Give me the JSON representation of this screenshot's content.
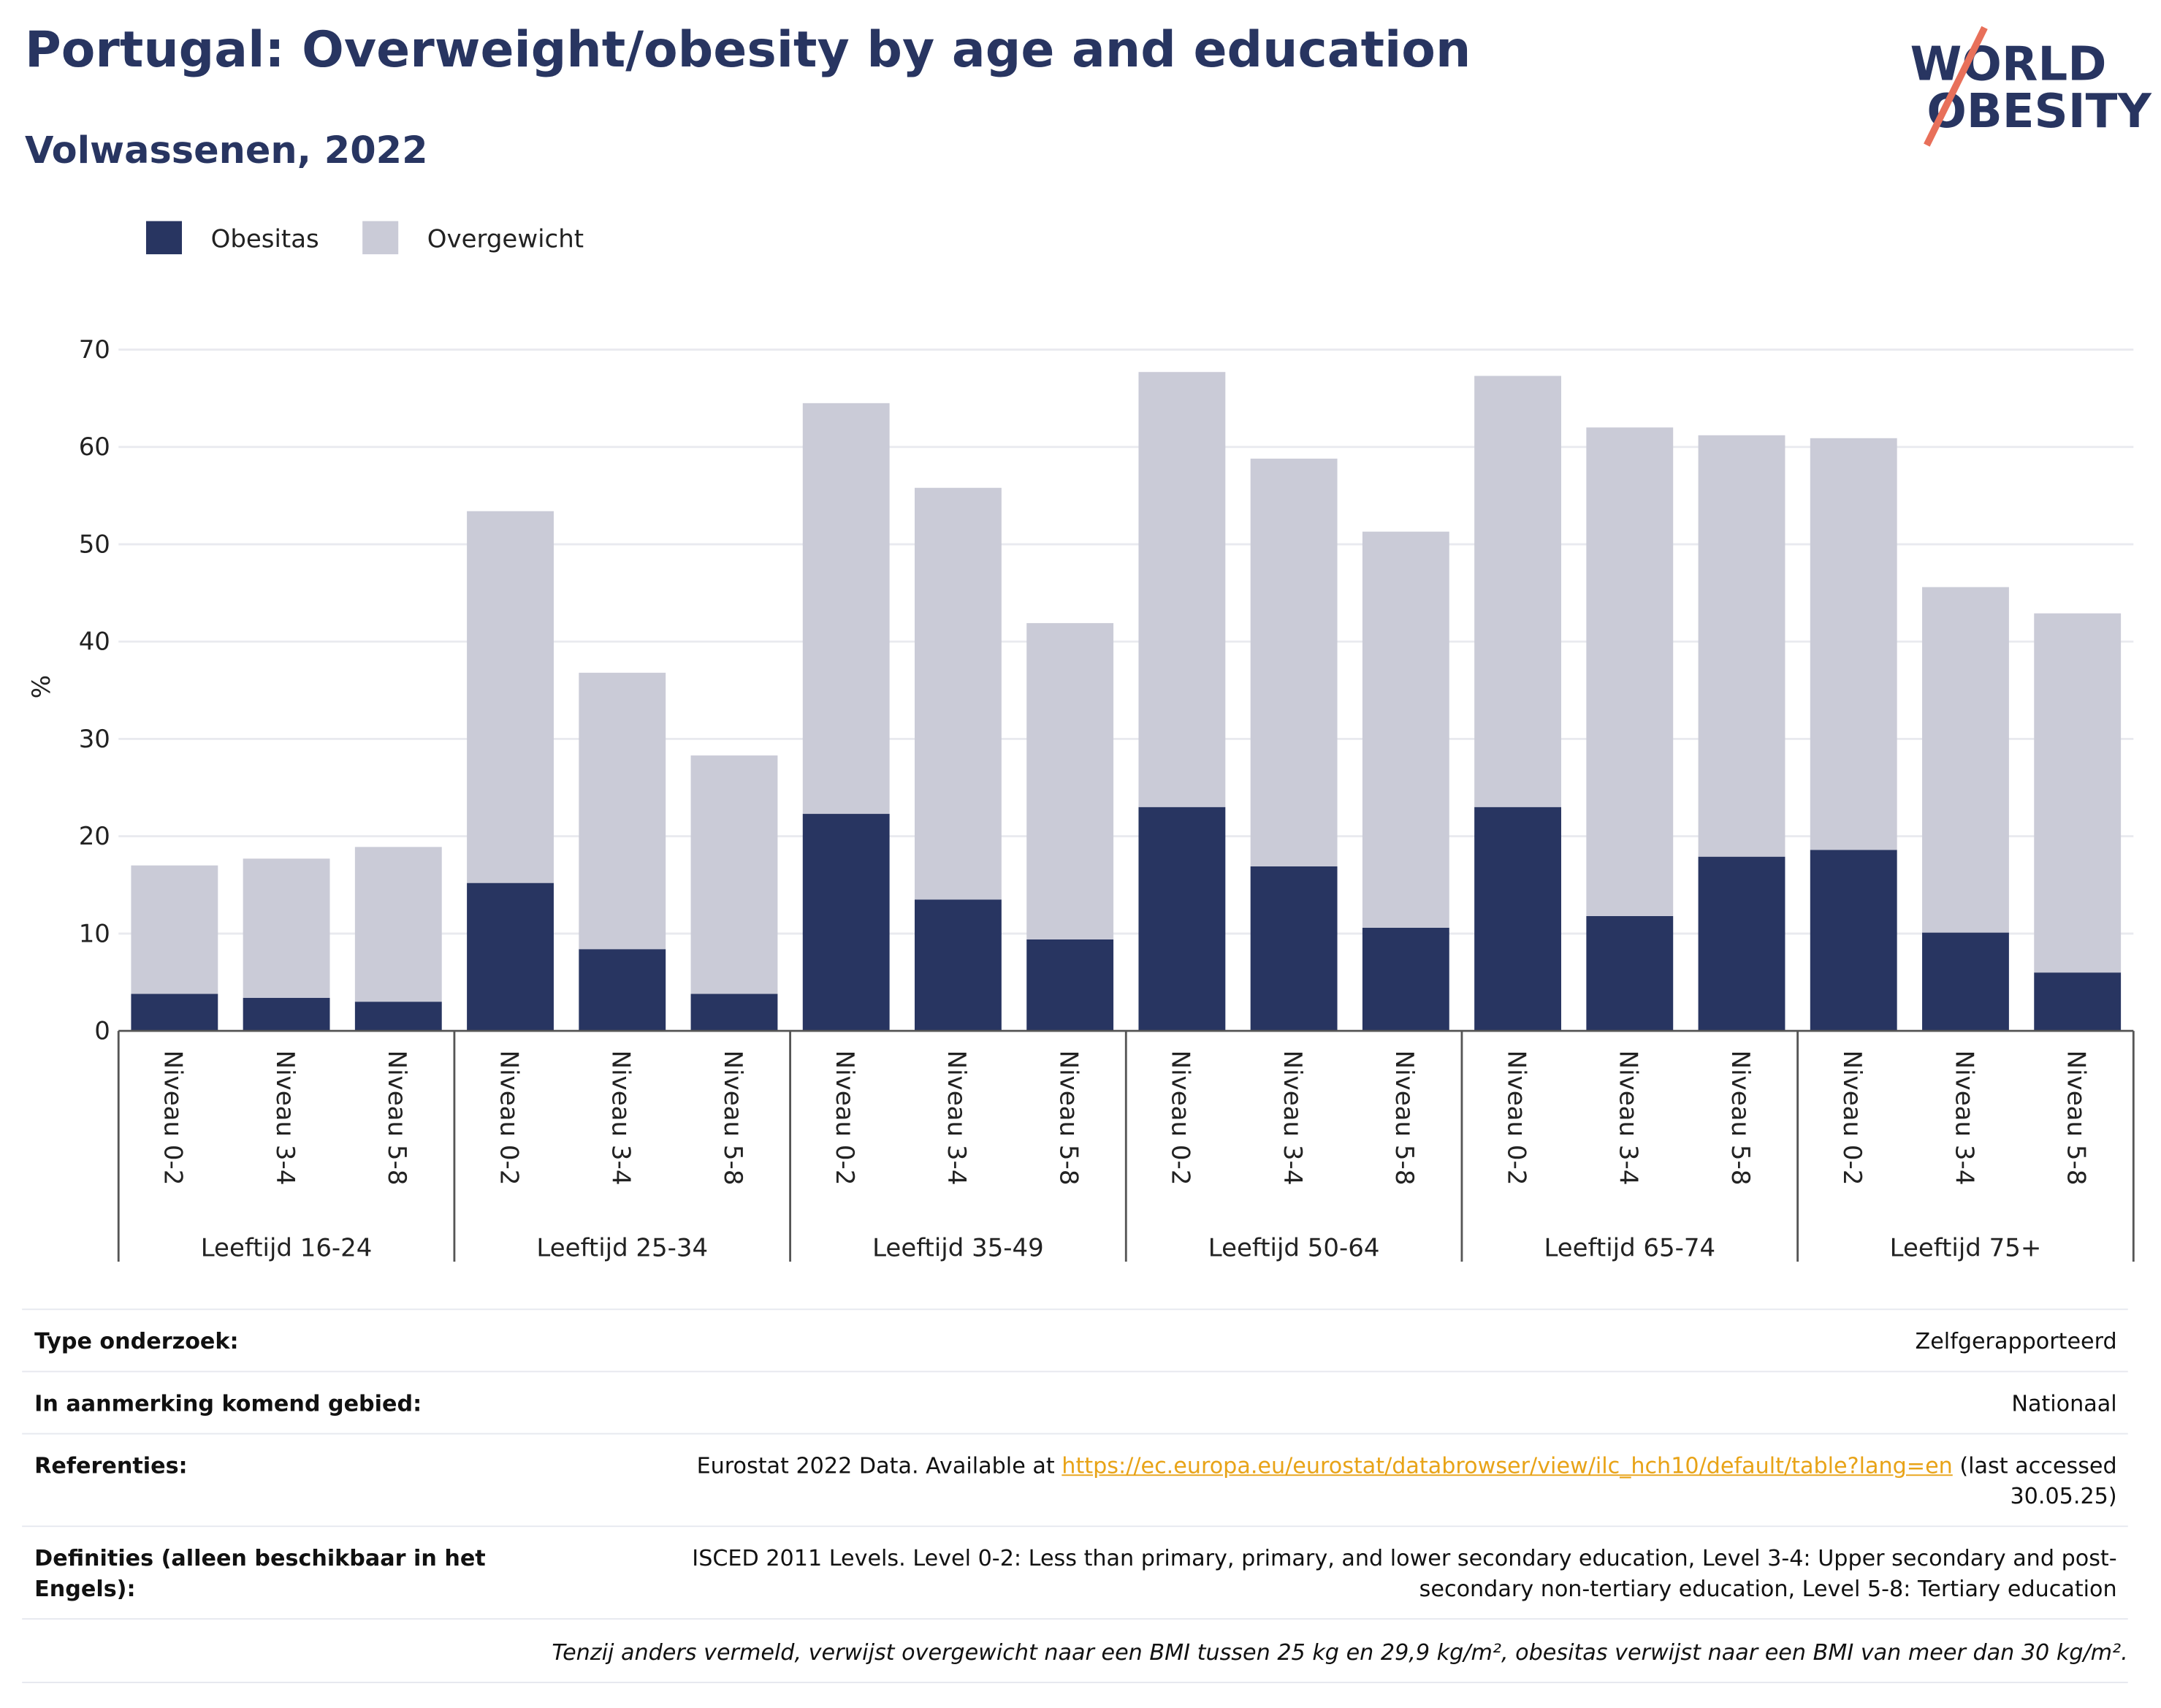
{
  "chart_data": {
    "type": "stacked_bar",
    "title": "Portugal: Overweight/obesity by age and education",
    "subtitle": "Volwassenen, 2022",
    "y_label": "%",
    "categories": [
      "Niveau 0-2",
      "Niveau 3-4",
      "Niveau 5-8",
      "Niveau 0-2",
      "Niveau 3-4",
      "Niveau 5-8",
      "Niveau 0-2",
      "Niveau 3-4",
      "Niveau 5-8",
      "Niveau 0-2",
      "Niveau 3-4",
      "Niveau 5-8",
      "Niveau 0-2",
      "Niveau 3-4",
      "Niveau 5-8",
      "Niveau 0-2",
      "Niveau 3-4",
      "Niveau 5-8"
    ],
    "groups": [
      "Leeftijd 16-24",
      "Leeftijd 25-34",
      "Leeftijd 35-49",
      "Leeftijd 50-64",
      "Leeftijd 65-74",
      "Leeftijd 75+"
    ],
    "series": [
      {
        "name": "Obesitas",
        "color": "#283561",
        "values": [
          3.8,
          3.4,
          3.0,
          15.2,
          8.4,
          3.8,
          22.3,
          13.5,
          9.4,
          23.0,
          16.9,
          10.6,
          23.0,
          11.8,
          17.9,
          18.6,
          10.1,
          6.0
        ]
      },
      {
        "name": "Overgewicht",
        "color": "#cacbd7",
        "values": [
          13.2,
          14.3,
          15.9,
          38.2,
          28.4,
          24.5,
          42.2,
          42.3,
          32.5,
          44.7,
          41.9,
          40.7,
          44.3,
          50.2,
          43.3,
          42.3,
          35.5,
          36.9
        ]
      }
    ],
    "ylim": [
      0,
      70
    ],
    "yticks": [
      0,
      10,
      20,
      30,
      40,
      50,
      60,
      70
    ],
    "grid": true,
    "legend": "top-left"
  },
  "logo": [
    "WORLD",
    "OBESITY"
  ],
  "info": [
    {
      "label": "Type onderzoek:",
      "value": "Zelfgerapporteerd"
    },
    {
      "label": "In aanmerking komend gebied:",
      "value": "Nationaal"
    },
    {
      "label": "Referenties:",
      "before": "Eurostat 2022 Data. Available at",
      "link": "https://ec.europa.eu/eurostat/databrowser/view/ilc_hch10/default/table?lang=en",
      "after": "(last accessed 30.05.25)"
    },
    {
      "label": "Definities (alleen beschikbaar in het Engels):",
      "value": "ISCED 2011 Levels. Level 0-2: Less than primary, primary, and lower secondary education, Level 3-4: Upper secondary and post-secondary non-tertiary education, Level 5-8: Tertiary education"
    }
  ],
  "note": "Tenzij anders vermeld, verwijst overgewicht naar een BMI tussen 25 kg en 29,9 kg/m², obesitas verwijst naar een BMI van meer dan 30 kg/m²."
}
